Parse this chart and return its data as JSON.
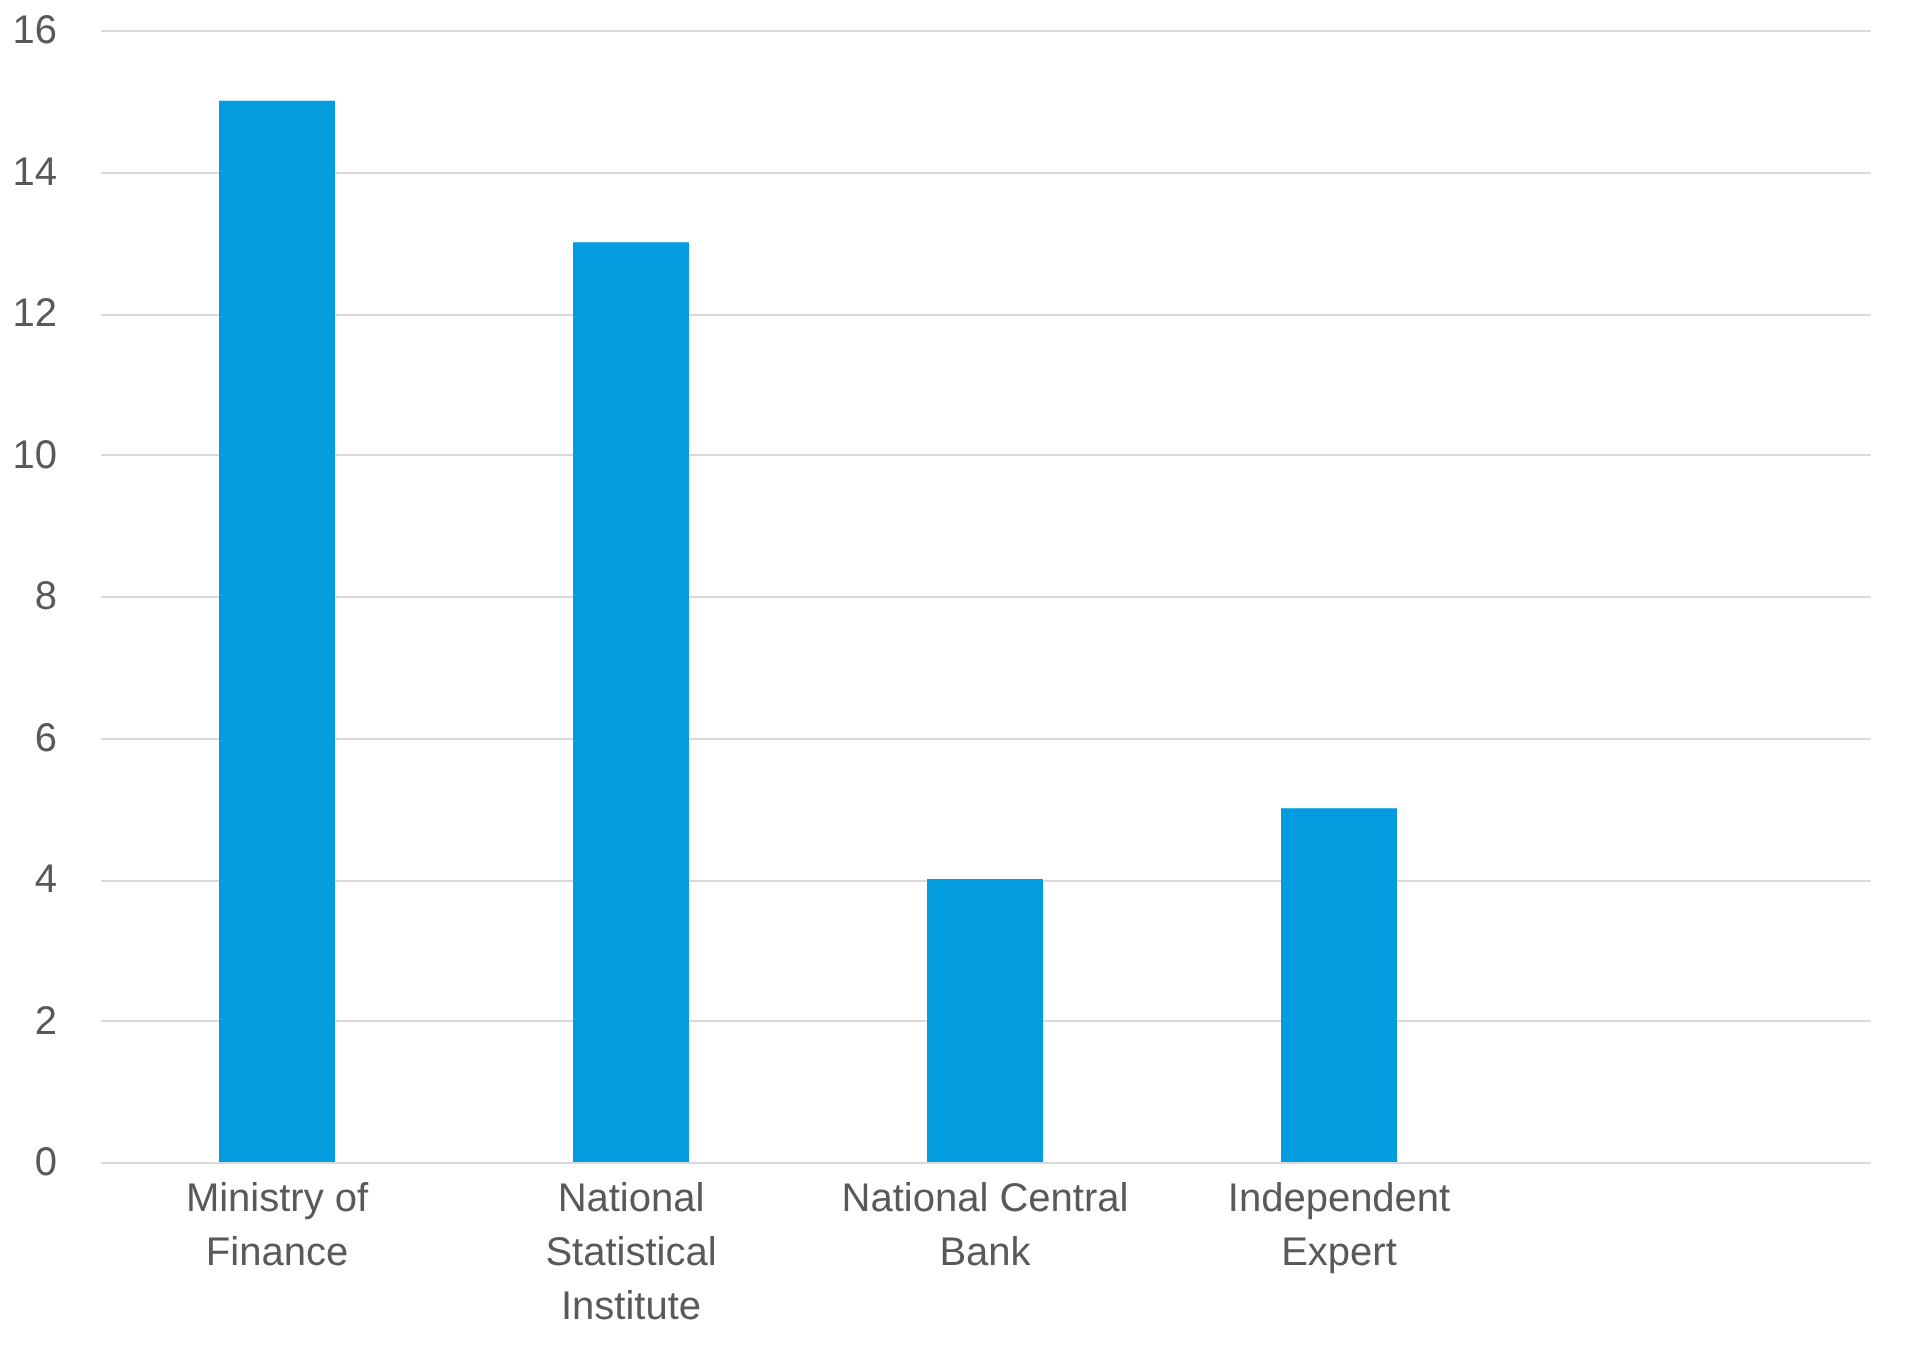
{
  "chart_data": {
    "type": "bar",
    "categories": [
      "Ministry of Finance",
      "National Statistical Institute",
      "National Central Bank",
      "Independent Expert",
      null
    ],
    "values": [
      15,
      13,
      4,
      5,
      null
    ],
    "color": "#039cde",
    "ylim": [
      0,
      16
    ],
    "yticks": [
      0,
      2,
      4,
      6,
      8,
      10,
      12,
      14,
      16
    ],
    "grid": "y"
  }
}
